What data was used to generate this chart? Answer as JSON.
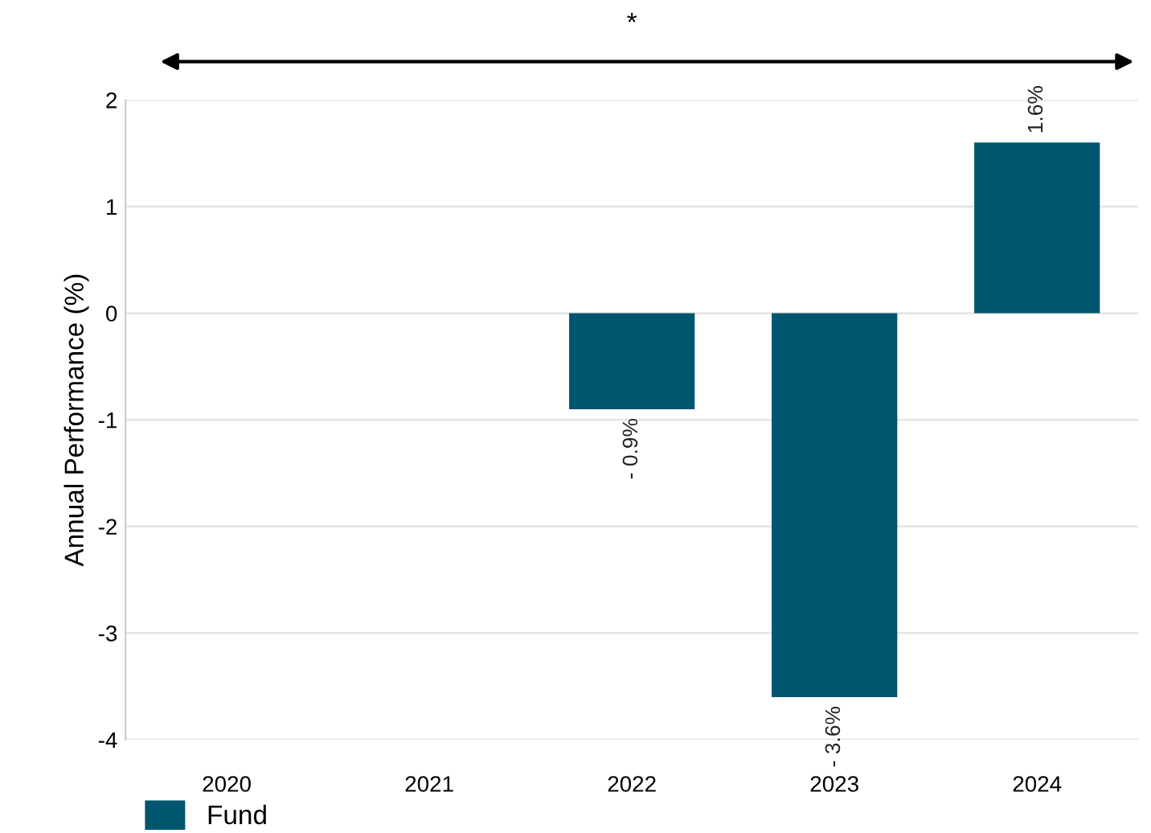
{
  "chart_data": {
    "type": "bar",
    "ylabel": "Annual Performance (%)",
    "categories": [
      "2020",
      "2021",
      "2022",
      "2023",
      "2024"
    ],
    "series": [
      {
        "name": "Fund",
        "color": "#00566f",
        "values": [
          null,
          null,
          -0.9,
          -3.6,
          1.6
        ],
        "value_labels": [
          null,
          null,
          "- 0.9%",
          "- 3.6%",
          "1.6%"
        ]
      }
    ],
    "ylim": [
      -4,
      2
    ],
    "yticks": [
      -4,
      -3,
      -2,
      -1,
      0,
      1,
      2
    ],
    "grid": "y",
    "legend": "bottom left",
    "annotations": [
      "*"
    ]
  }
}
